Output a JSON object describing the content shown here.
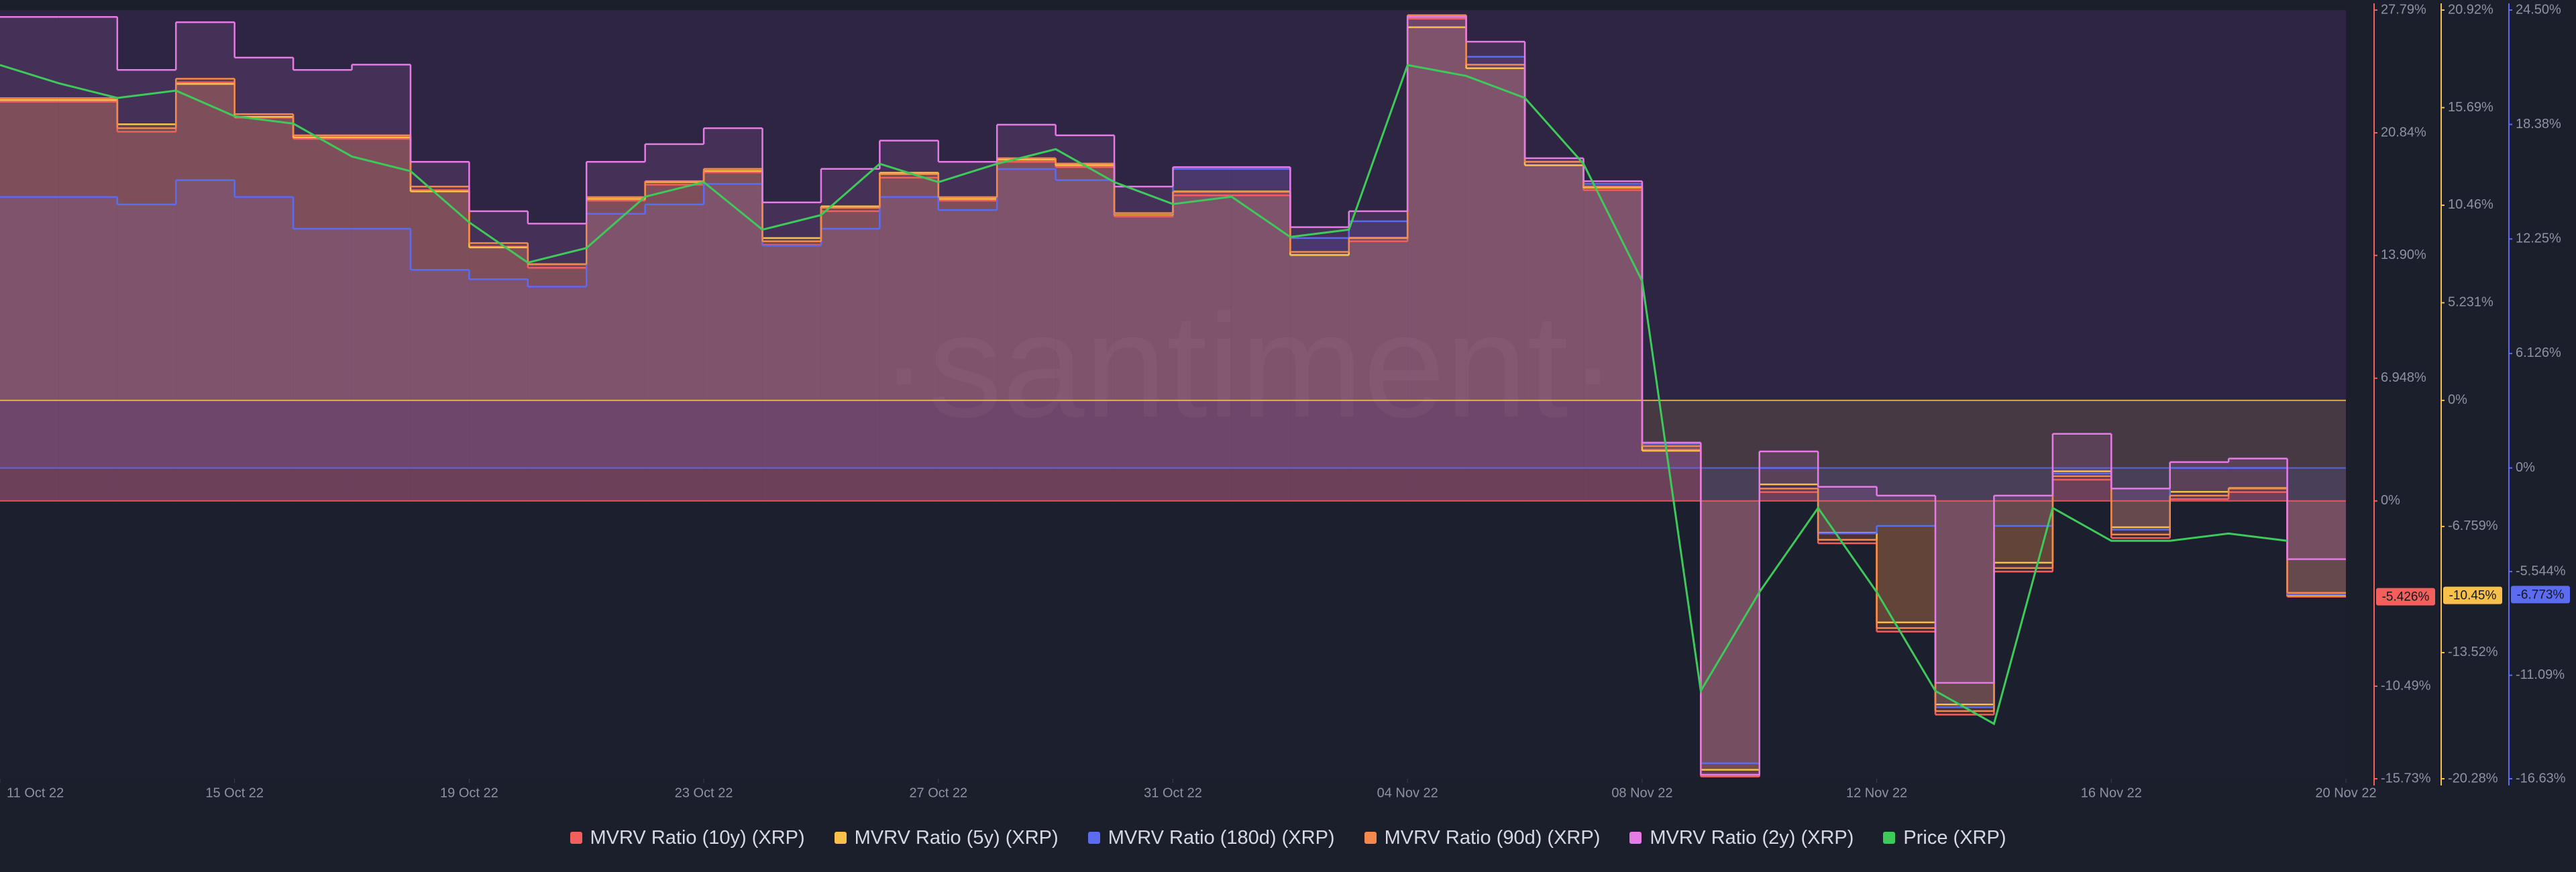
{
  "chart_data": {
    "type": "line",
    "watermark": "·santiment·",
    "x": [
      "2022-10-11",
      "2022-10-12",
      "2022-10-13",
      "2022-10-14",
      "2022-10-15",
      "2022-10-16",
      "2022-10-17",
      "2022-10-18",
      "2022-10-19",
      "2022-10-20",
      "2022-10-21",
      "2022-10-22",
      "2022-10-23",
      "2022-10-24",
      "2022-10-25",
      "2022-10-26",
      "2022-10-27",
      "2022-10-28",
      "2022-10-29",
      "2022-10-30",
      "2022-10-31",
      "2022-11-01",
      "2022-11-02",
      "2022-11-03",
      "2022-11-04",
      "2022-11-05",
      "2022-11-06",
      "2022-11-07",
      "2022-11-08",
      "2022-11-09",
      "2022-11-10",
      "2022-11-11",
      "2022-11-12",
      "2022-11-13",
      "2022-11-14",
      "2022-11-15",
      "2022-11-16",
      "2022-11-17",
      "2022-11-18",
      "2022-11-19"
    ],
    "xlim": [
      "2022-10-11",
      "2022-11-20"
    ],
    "xticks": [
      {
        "value": "2022-10-11",
        "label": "11 Oct 22"
      },
      {
        "value": "2022-10-15",
        "label": "15 Oct 22"
      },
      {
        "value": "2022-10-19",
        "label": "19 Oct 22"
      },
      {
        "value": "2022-10-23",
        "label": "23 Oct 22"
      },
      {
        "value": "2022-10-27",
        "label": "27 Oct 22"
      },
      {
        "value": "2022-10-31",
        "label": "31 Oct 22"
      },
      {
        "value": "2022-11-04",
        "label": "04 Nov 22"
      },
      {
        "value": "2022-11-08",
        "label": "08 Nov 22"
      },
      {
        "value": "2022-11-12",
        "label": "12 Nov 22"
      },
      {
        "value": "2022-11-16",
        "label": "16 Nov 22"
      },
      {
        "value": "2022-11-20",
        "label": "20 Nov 22"
      }
    ],
    "ylim": [
      -15.73,
      27.79
    ],
    "yticks": [
      {
        "value": 27.79,
        "label": "27.79%"
      },
      {
        "value": 20.84,
        "label": "20.84%"
      },
      {
        "value": 13.9,
        "label": "13.90%"
      },
      {
        "value": 6.948,
        "label": "6.948%"
      },
      {
        "value": 0,
        "label": "0%"
      },
      {
        "value": -10.49,
        "label": "-10.49%"
      },
      {
        "value": -15.73,
        "label": "-15.73%"
      }
    ],
    "y2lim": [
      -20.28,
      20.92
    ],
    "y2ticks": [
      {
        "value": 20.92,
        "label": "20.92%"
      },
      {
        "value": 15.69,
        "label": "15.69%"
      },
      {
        "value": 10.46,
        "label": "10.46%"
      },
      {
        "value": 5.231,
        "label": "5.231%"
      },
      {
        "value": 0,
        "label": "0%"
      },
      {
        "value": -6.759,
        "label": "-6.759%"
      },
      {
        "value": -13.52,
        "label": "-13.52%"
      },
      {
        "value": -20.28,
        "label": "-20.28%"
      }
    ],
    "y3lim": [
      -16.63,
      24.5
    ],
    "y3ticks": [
      {
        "value": 24.5,
        "label": "24.50%"
      },
      {
        "value": 18.38,
        "label": "18.38%"
      },
      {
        "value": 12.25,
        "label": "12.25%"
      },
      {
        "value": 6.126,
        "label": "6.126%"
      },
      {
        "value": 0,
        "label": "0%"
      },
      {
        "value": -5.544,
        "label": "-5.544%"
      },
      {
        "value": -11.09,
        "label": "-11.09%"
      },
      {
        "value": -16.63,
        "label": "-16.63%"
      }
    ],
    "y4lim": [
      0.31,
      0.52
    ],
    "series": [
      {
        "name": "MVRV Ratio (10y) (XRP)",
        "color": "#f25f5c",
        "axis": "y",
        "step": true,
        "last_value_label": "-5.426%",
        "values": [
          22.6,
          22.6,
          20.9,
          23.7,
          21.7,
          20.5,
          20.5,
          17.6,
          14.4,
          13.2,
          17.0,
          17.9,
          18.6,
          14.5,
          16.4,
          18.3,
          17.0,
          19.2,
          18.9,
          16.1,
          17.3,
          17.3,
          13.9,
          14.7,
          27.3,
          24.5,
          19.0,
          17.6,
          2.9,
          -15.6,
          0.5,
          -2.4,
          -7.4,
          -12.1,
          -4.0,
          1.2,
          -2.1,
          0.1,
          0.5,
          -5.426
        ]
      },
      {
        "name": "MVRV Ratio (5y) (XRP)",
        "color": "#f7c04a",
        "axis": "y2",
        "step": true,
        "last_value_label": "-10.45%",
        "values": [
          16.1,
          16.1,
          14.8,
          16.96,
          15.2,
          14.1,
          14.1,
          11.2,
          8.2,
          7.3,
          10.8,
          11.7,
          12.3,
          8.7,
          10.4,
          12.2,
          10.8,
          12.9,
          12.6,
          9.96,
          11.2,
          11.2,
          7.8,
          8.7,
          20.0,
          17.8,
          12.6,
          11.4,
          -2.7,
          -19.8,
          -4.5,
          -7.1,
          -11.9,
          -16.3,
          -8.7,
          -3.8,
          -6.8,
          -4.9,
          -4.7,
          -10.45
        ]
      },
      {
        "name": "MVRV Ratio (180d) (XRP)",
        "color": "#5b6cf0",
        "axis": "y3",
        "step": true,
        "last_value_label": "-6.773%",
        "values": [
          14.5,
          14.5,
          14.1,
          15.4,
          14.5,
          12.8,
          12.8,
          10.6,
          10.1,
          9.7,
          13.6,
          14.1,
          15.2,
          11.9,
          12.8,
          14.5,
          13.8,
          16.0,
          15.4,
          13.6,
          16.0,
          16.0,
          12.3,
          13.2,
          24.2,
          22.0,
          16.4,
          15.2,
          1.3,
          -15.8,
          0,
          -3.5,
          -3.1,
          -12.8,
          -3.1,
          -0.3,
          -3.3,
          0,
          0,
          -6.773
        ]
      },
      {
        "name": "MVRV Ratio (90d) (XRP)",
        "color": "#f3894d",
        "axis": "y",
        "step": true,
        "values": [
          22.8,
          22.8,
          21.1,
          23.9,
          21.9,
          20.7,
          20.7,
          17.8,
          14.6,
          13.4,
          17.2,
          18.1,
          18.8,
          14.7,
          16.6,
          18.5,
          17.2,
          19.4,
          19.1,
          16.3,
          17.5,
          17.5,
          14.1,
          14.9,
          27.5,
          24.7,
          19.2,
          17.8,
          3.1,
          -15.5,
          0.7,
          -2.2,
          -7.2,
          -11.9,
          -3.8,
          1.4,
          -1.9,
          0.3,
          0.7,
          -5.2
        ]
      },
      {
        "name": "MVRV Ratio (2y) (XRP)",
        "color": "#e57be4",
        "axis": "y",
        "step": true,
        "values": [
          27.4,
          27.4,
          24.4,
          27.1,
          25.1,
          24.4,
          24.7,
          19.2,
          16.4,
          15.7,
          19.2,
          20.2,
          21.1,
          16.9,
          18.8,
          20.4,
          19.2,
          21.3,
          20.7,
          17.8,
          18.9,
          18.9,
          15.5,
          16.4,
          27.4,
          26.0,
          19.4,
          18.1,
          3.3,
          -15.5,
          2.8,
          0.8,
          0.3,
          -10.3,
          0.3,
          3.8,
          0.7,
          2.2,
          2.4,
          -3.3
        ]
      },
      {
        "name": "Price (XRP)",
        "color": "#3ec95a",
        "axis": "y4",
        "step": false,
        "values": [
          0.505,
          0.5,
          0.496,
          0.498,
          0.491,
          0.489,
          0.48,
          0.476,
          0.462,
          0.451,
          0.455,
          0.469,
          0.473,
          0.46,
          0.464,
          0.478,
          0.473,
          0.478,
          0.482,
          0.473,
          0.467,
          0.469,
          0.458,
          0.46,
          0.505,
          0.502,
          0.496,
          0.478,
          0.446,
          0.334,
          0.361,
          0.384,
          0.361,
          0.334,
          0.325,
          0.384,
          0.375,
          0.375,
          0.377,
          0.375
        ]
      }
    ]
  }
}
